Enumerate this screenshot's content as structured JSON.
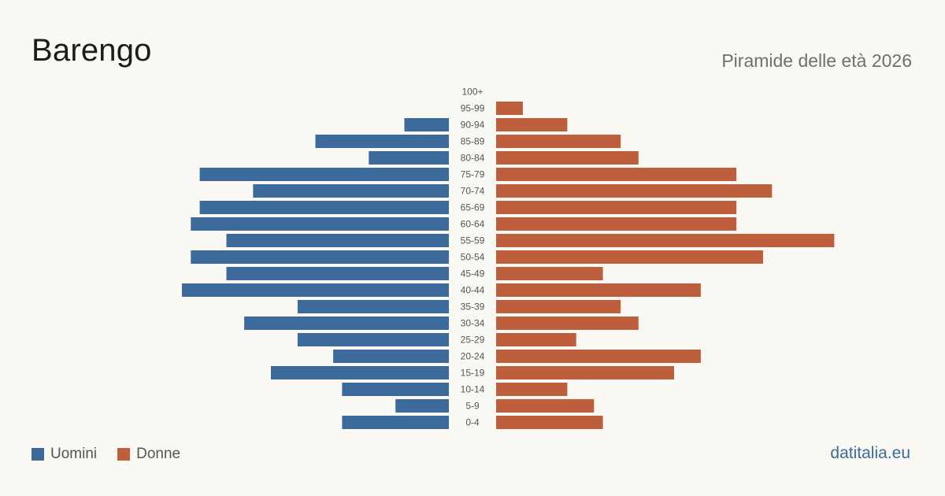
{
  "title": "Barengo",
  "subtitle": "Piramide delle età 2026",
  "source": "datitalia.eu",
  "colors": {
    "male": "#3b6a9b",
    "female": "#bd5f3d",
    "background": "#faf8f3"
  },
  "legend": [
    {
      "label": "Uomini",
      "color": "#3b6a9b"
    },
    {
      "label": "Donne",
      "color": "#bd5f3d"
    }
  ],
  "chart_data": {
    "type": "bar",
    "orientation": "horizontal-pyramid",
    "title": "Barengo",
    "subtitle": "Piramide delle età 2026",
    "categories": [
      "100+",
      "95-99",
      "90-94",
      "85-89",
      "80-84",
      "75-79",
      "70-74",
      "65-69",
      "60-64",
      "55-59",
      "50-54",
      "45-49",
      "40-44",
      "35-39",
      "30-34",
      "25-29",
      "20-24",
      "15-19",
      "10-14",
      "5-9",
      "0-4"
    ],
    "series": [
      {
        "name": "Uomini",
        "values": [
          0,
          0,
          5,
          15,
          9,
          28,
          22,
          28,
          29,
          25,
          29,
          25,
          30,
          17,
          23,
          17,
          13,
          20,
          12,
          6,
          12
        ]
      },
      {
        "name": "Donne",
        "values": [
          0,
          3,
          8,
          14,
          16,
          27,
          31,
          27,
          27,
          38,
          30,
          12,
          23,
          14,
          16,
          9,
          23,
          20,
          8,
          11,
          12
        ]
      }
    ],
    "legend_position": "bottom-left",
    "grid": false
  }
}
